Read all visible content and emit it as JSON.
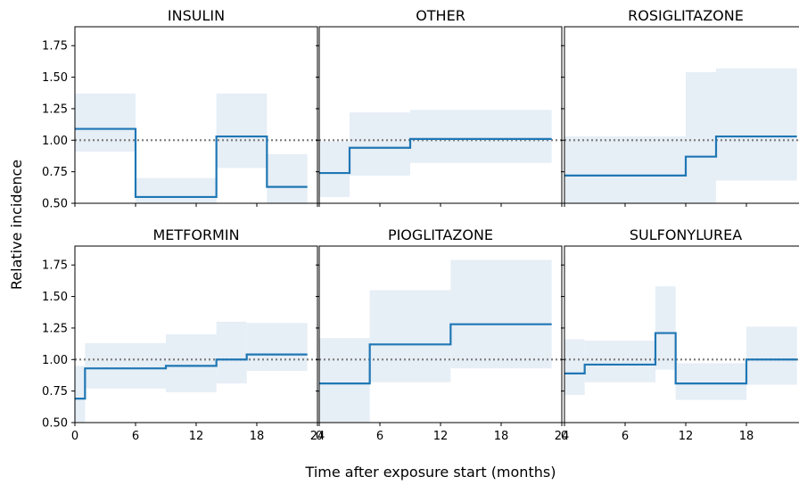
{
  "chart_data": {
    "type": "step",
    "layout": {
      "rows": 2,
      "cols": 3,
      "sharex": true,
      "sharey": true
    },
    "xlabel": "Time after exposure start (months)",
    "ylabel": "Relative incidence",
    "xlim": [
      0,
      24
    ],
    "ylim": [
      0.5,
      1.9
    ],
    "xticks": [
      0,
      6,
      12,
      18,
      24
    ],
    "yticks": [
      0.5,
      0.75,
      1.0,
      1.25,
      1.5,
      1.75
    ],
    "xtick_labels": [
      "0",
      "6",
      "12",
      "18",
      "24"
    ],
    "ytick_labels": [
      "0.50",
      "0.75",
      "1.00",
      "1.25",
      "1.50",
      "1.75"
    ],
    "reference_line": {
      "y": 1.0,
      "style": "dotted",
      "color": "#808080"
    },
    "line_color": "#1f77b4",
    "band_color": "#e6eef6",
    "panels": [
      {
        "title": "INSULIN",
        "intervals": [
          {
            "x0": 0,
            "x1": 6,
            "value": 1.09,
            "ci": [
              0.91,
              1.37
            ]
          },
          {
            "x0": 6,
            "x1": 14,
            "value": 0.55,
            "ci": [
              0.5,
              0.7
            ]
          },
          {
            "x0": 14,
            "x1": 19,
            "value": 1.03,
            "ci": [
              0.78,
              1.37
            ]
          },
          {
            "x0": 19,
            "x1": 23,
            "value": 0.63,
            "ci": [
              0.5,
              0.89
            ]
          }
        ]
      },
      {
        "title": "OTHER",
        "intervals": [
          {
            "x0": 0,
            "x1": 3,
            "value": 0.74,
            "ci": [
              0.55,
              0.99
            ]
          },
          {
            "x0": 3,
            "x1": 9,
            "value": 0.94,
            "ci": [
              0.72,
              1.22
            ]
          },
          {
            "x0": 9,
            "x1": 23,
            "value": 1.01,
            "ci": [
              0.82,
              1.24
            ]
          }
        ]
      },
      {
        "title": "ROSIGLITAZONE",
        "intervals": [
          {
            "x0": 0,
            "x1": 12,
            "value": 0.72,
            "ci": [
              0.5,
              1.03
            ]
          },
          {
            "x0": 12,
            "x1": 15,
            "value": 0.87,
            "ci": [
              0.5,
              1.54
            ]
          },
          {
            "x0": 15,
            "x1": 23,
            "value": 1.03,
            "ci": [
              0.68,
              1.57
            ]
          }
        ]
      },
      {
        "title": "METFORMIN",
        "intervals": [
          {
            "x0": 0,
            "x1": 1,
            "value": 0.69,
            "ci": [
              0.5,
              0.95
            ]
          },
          {
            "x0": 1,
            "x1": 9,
            "value": 0.93,
            "ci": [
              0.77,
              1.13
            ]
          },
          {
            "x0": 9,
            "x1": 14,
            "value": 0.95,
            "ci": [
              0.74,
              1.2
            ]
          },
          {
            "x0": 14,
            "x1": 17,
            "value": 1.0,
            "ci": [
              0.81,
              1.3
            ]
          },
          {
            "x0": 17,
            "x1": 23,
            "value": 1.04,
            "ci": [
              0.91,
              1.29
            ]
          }
        ]
      },
      {
        "title": "PIOGLITAZONE",
        "intervals": [
          {
            "x0": 0,
            "x1": 5,
            "value": 0.81,
            "ci": [
              0.5,
              1.17
            ]
          },
          {
            "x0": 5,
            "x1": 13,
            "value": 1.12,
            "ci": [
              0.82,
              1.55
            ]
          },
          {
            "x0": 13,
            "x1": 23,
            "value": 1.28,
            "ci": [
              0.93,
              1.79
            ]
          }
        ]
      },
      {
        "title": "SULFONYLUREA",
        "intervals": [
          {
            "x0": 0,
            "x1": 2,
            "value": 0.89,
            "ci": [
              0.72,
              1.16
            ]
          },
          {
            "x0": 2,
            "x1": 9,
            "value": 0.96,
            "ci": [
              0.82,
              1.15
            ]
          },
          {
            "x0": 9,
            "x1": 11,
            "value": 1.21,
            "ci": [
              0.92,
              1.58
            ]
          },
          {
            "x0": 11,
            "x1": 18,
            "value": 0.81,
            "ci": [
              0.68,
              0.97
            ]
          },
          {
            "x0": 18,
            "x1": 23,
            "value": 1.0,
            "ci": [
              0.8,
              1.26
            ]
          }
        ]
      }
    ]
  }
}
